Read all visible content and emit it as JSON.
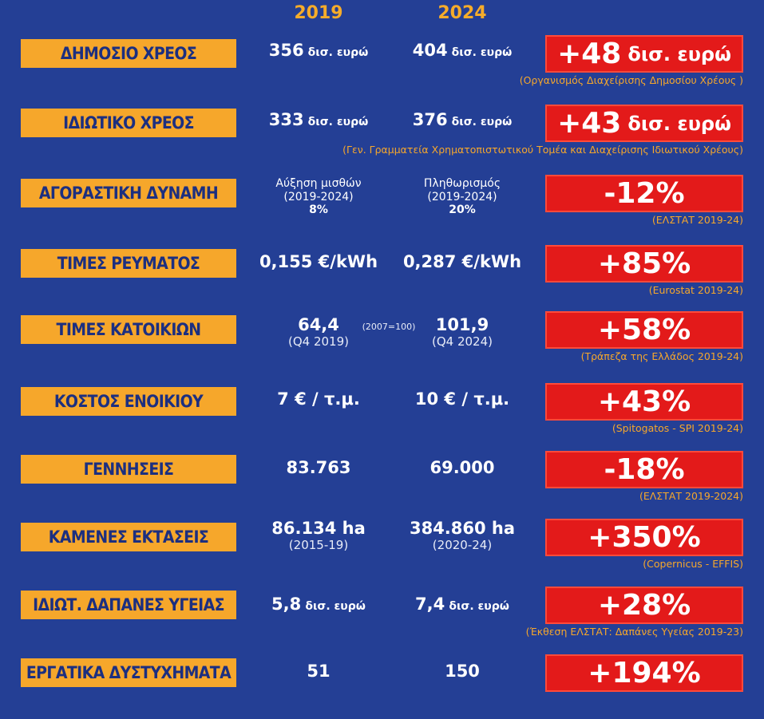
{
  "years": {
    "y1": "2019",
    "y2": "2024"
  },
  "rows": [
    {
      "label": "ΔΗΜΟΣΙΟ ΧΡΕΟΣ",
      "v19": "356",
      "v19_unit": "δισ. ευρώ",
      "v24": "404",
      "v24_unit": "δισ. ευρώ",
      "result": "+48",
      "result_unit": "δισ. ευρώ",
      "source": "(Οργανισμός Διαχείρισης Δημοσίου Χρέους )"
    },
    {
      "label": "ΙΔΙΩΤΙΚΟ ΧΡΕΟΣ",
      "v19": "333",
      "v19_unit": "δισ. ευρώ",
      "v24": "376",
      "v24_unit": "δισ. ευρώ",
      "result": "+43",
      "result_unit": "δισ. ευρώ",
      "source": "(Γεν. Γραμματεία Χρηματοπιστωτικού Τομέα και Διαχείρισης Ιδιωτικού Χρέους)"
    },
    {
      "label": "ΑΓΟΡΑΣΤΙΚΗ ΔΥΝΑΜΗ",
      "v19_l1": "Αύξηση μισθών",
      "v19_l2": "(2019-2024)",
      "v19_l3": "8%",
      "v24_l1": "Πληθωρισμός",
      "v24_l2": "(2019-2024)",
      "v24_l3": "20%",
      "result": "-12%",
      "source": "(ΕΛΣΤΑΤ 2019-24)"
    },
    {
      "label": "ΤΙΜΕΣ ΡΕΥΜΑΤΟΣ",
      "v19": "0,155 €/kWh",
      "v24": "0,287 €/kWh",
      "result": "+85%",
      "source": "(Eurostat 2019-24)"
    },
    {
      "label": "ΤΙΜΕΣ ΚΑΤΟΙΚΙΩΝ",
      "v19": "64,4",
      "v19_sub": "(Q4 2019)",
      "mid": "(2007=100)",
      "v24": "101,9",
      "v24_sub": "(Q4 2024)",
      "result": "+58%",
      "source": "(Τράπεζα της Ελλάδος 2019-24)"
    },
    {
      "label": "ΚΟΣΤΟΣ ΕΝΟΙΚΙΟΥ",
      "v19": "7 € / τ.μ.",
      "v24": "10 € / τ.μ.",
      "result": "+43%",
      "source": "(Spitogatos - SPI 2019-24)"
    },
    {
      "label": "ΓΕΝΝΗΣΕΙΣ",
      "v19": "83.763",
      "v24": "69.000",
      "result": "-18%",
      "source": "(ΕΛΣΤΑΤ 2019-2024)"
    },
    {
      "label": "ΚΑΜΕΝΕΣ ΕΚΤΑΣΕΙΣ",
      "v19": "86.134 ha",
      "v19_sub": "(2015-19)",
      "v24": "384.860 ha",
      "v24_sub": "(2020-24)",
      "result": "+350%",
      "source": "(Copernicus - EFFIS)"
    },
    {
      "label": "ΙΔΙΩΤ. ΔΑΠΑΝΕΣ ΥΓΕΙΑΣ",
      "v19": "5,8",
      "v19_unit": "δισ. ευρώ",
      "v24": "7,4",
      "v24_unit": "δισ. ευρώ",
      "result": "+28%",
      "source": "(Έκθεση ΕΛΣΤΑΤ: Δαπάνες Υγείας 2019-23)"
    },
    {
      "label": "ΕΡΓΑΤΙΚΑ ΔΥΣΤΥΧΗΜΑΤΑ",
      "v19": "51",
      "v24": "150",
      "result": "+194%"
    }
  ],
  "colors": {
    "background": "#243f95",
    "label_bg": "#f6a72b",
    "label_text": "#1c2f80",
    "result_bg": "#e31a1a",
    "source_text": "#f6a72b"
  }
}
